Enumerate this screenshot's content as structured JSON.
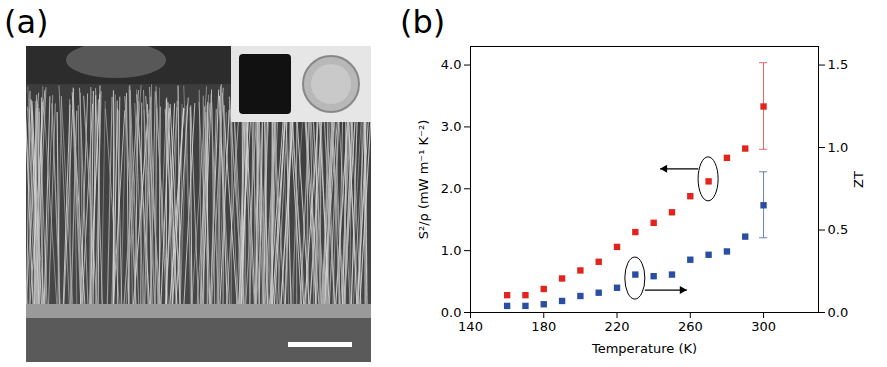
{
  "image_panel": {
    "panel_label": "(a)"
  },
  "chart_data": {
    "type": "scatter",
    "panel_label": "(b)",
    "xlabel": "Temperature (K)",
    "ylabel": "S²/ρ (mW m⁻¹ K⁻²)",
    "y2label": "ZT",
    "x": [
      160,
      170,
      180,
      190,
      200,
      210,
      220,
      230,
      240,
      250,
      260,
      270,
      280,
      290,
      300
    ],
    "series": [
      {
        "name": "S²/ρ",
        "color": "#e3241d",
        "marker": "square",
        "axis": "y",
        "values": [
          0.28,
          0.28,
          0.38,
          0.55,
          0.68,
          0.82,
          1.06,
          1.3,
          1.45,
          1.62,
          1.88,
          2.12,
          2.5,
          2.65,
          3.33
        ],
        "errors": [
          null,
          null,
          null,
          null,
          null,
          null,
          null,
          null,
          null,
          null,
          null,
          null,
          null,
          null,
          0.7
        ]
      },
      {
        "name": "ZT",
        "color": "#2b4ea2",
        "marker": "square",
        "axis": "y2",
        "values": [
          0.04,
          0.04,
          0.05,
          0.07,
          0.1,
          0.12,
          0.15,
          0.23,
          0.22,
          0.23,
          0.32,
          0.35,
          0.37,
          0.46,
          0.65
        ],
        "errors": [
          null,
          null,
          null,
          null,
          null,
          null,
          null,
          null,
          null,
          null,
          null,
          null,
          null,
          null,
          0.2
        ]
      }
    ],
    "xlim": [
      140,
      330
    ],
    "xticks": [
      140,
      180,
      220,
      260,
      300
    ],
    "ylim": [
      0,
      4.3
    ],
    "yticks": [
      {
        "value": 0,
        "label": "0.0"
      },
      {
        "value": 1,
        "label": "1.0"
      },
      {
        "value": 2,
        "label": "2.0"
      },
      {
        "value": 3,
        "label": "3.0"
      },
      {
        "value": 4,
        "label": "4.0"
      }
    ],
    "y2lim": [
      0,
      1.6125
    ],
    "y2ticks": [
      {
        "value": 0,
        "label": "0.0"
      },
      0.5,
      {
        "value": 1,
        "label": "1.0"
      },
      1.5
    ],
    "grid": false
  }
}
